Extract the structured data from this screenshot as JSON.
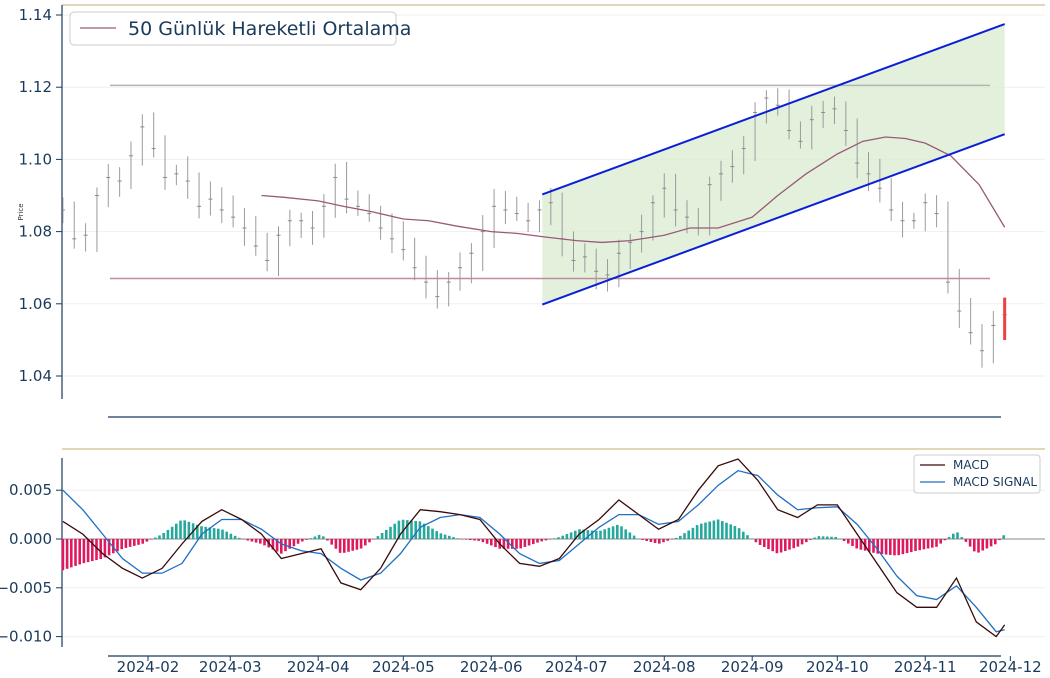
{
  "colors": {
    "ma_line": "#9a5a78",
    "support_line": "#c08aa0",
    "resistance_line": "#b4b4b4",
    "channel_line": "#0a1fd6",
    "channel_fill": "#d9ecd0",
    "candle": "#9a9a9a",
    "last_candle": "#e8433f",
    "macd_line": "#3a0a0a",
    "signal_line": "#1f6fc4",
    "hist_pos": "#24a99c",
    "hist_neg": "#e0185f",
    "axis": "#1a3a5c",
    "top_border": "#d8c9a0"
  },
  "chart_data": [
    {
      "type": "line",
      "ylabel": "Price",
      "ylim": [
        1.034,
        1.141
      ],
      "y_ticks": [
        1.04,
        1.06,
        1.08,
        1.1,
        1.12,
        1.14
      ],
      "y_tick_labels": [
        "1.04",
        "1.06",
        "1.08",
        "1.10",
        "1.12",
        "1.14"
      ],
      "legend": "top-left",
      "grid": true,
      "horizontal_levels": {
        "resistance": 1.1205,
        "support": 1.067
      },
      "channel": {
        "x_start": "2024-06-19",
        "x_end": "2024-11-29",
        "upper": [
          1.0903,
          1.1375
        ],
        "lower": [
          1.0598,
          1.107
        ]
      },
      "series": [
        {
          "name": "50 Günlük Hareketli Ortalama",
          "x": [
            "2024-03-12",
            "2024-03-20",
            "2024-04-01",
            "2024-04-10",
            "2024-04-20",
            "2024-05-01",
            "2024-05-10",
            "2024-05-20",
            "2024-06-01",
            "2024-06-10",
            "2024-06-20",
            "2024-07-01",
            "2024-07-10",
            "2024-07-20",
            "2024-08-01",
            "2024-08-10",
            "2024-08-20",
            "2024-09-01",
            "2024-09-10",
            "2024-09-20",
            "2024-10-01",
            "2024-10-10",
            "2024-10-18",
            "2024-10-25",
            "2024-11-01",
            "2024-11-10",
            "2024-11-20",
            "2024-11-29"
          ],
          "y": [
            1.09,
            1.0895,
            1.0885,
            1.087,
            1.0855,
            1.0835,
            1.083,
            1.0815,
            1.08,
            1.0795,
            1.0785,
            1.0775,
            1.077,
            1.0775,
            1.079,
            1.081,
            1.081,
            1.084,
            1.09,
            1.096,
            1.1015,
            1.105,
            1.1062,
            1.1058,
            1.1045,
            1.101,
            1.093,
            1.0812
          ]
        },
        {
          "name": "price",
          "x": [
            "2024-01-02",
            "2024-01-06",
            "2024-01-10",
            "2024-01-14",
            "2024-01-18",
            "2024-01-22",
            "2024-01-26",
            "2024-01-30",
            "2024-02-03",
            "2024-02-07",
            "2024-02-11",
            "2024-02-15",
            "2024-02-19",
            "2024-02-23",
            "2024-02-27",
            "2024-03-02",
            "2024-03-06",
            "2024-03-10",
            "2024-03-14",
            "2024-03-18",
            "2024-03-22",
            "2024-03-26",
            "2024-03-30",
            "2024-04-03",
            "2024-04-07",
            "2024-04-11",
            "2024-04-15",
            "2024-04-19",
            "2024-04-23",
            "2024-04-27",
            "2024-05-01",
            "2024-05-05",
            "2024-05-09",
            "2024-05-13",
            "2024-05-17",
            "2024-05-21",
            "2024-05-25",
            "2024-05-29",
            "2024-06-02",
            "2024-06-06",
            "2024-06-10",
            "2024-06-14",
            "2024-06-18",
            "2024-06-22",
            "2024-06-26",
            "2024-06-30",
            "2024-07-04",
            "2024-07-08",
            "2024-07-12",
            "2024-07-16",
            "2024-07-20",
            "2024-07-24",
            "2024-07-28",
            "2024-08-01",
            "2024-08-05",
            "2024-08-09",
            "2024-08-13",
            "2024-08-17",
            "2024-08-21",
            "2024-08-25",
            "2024-08-29",
            "2024-09-02",
            "2024-09-06",
            "2024-09-10",
            "2024-09-14",
            "2024-09-18",
            "2024-09-22",
            "2024-09-26",
            "2024-09-30",
            "2024-10-04",
            "2024-10-08",
            "2024-10-12",
            "2024-10-16",
            "2024-10-20",
            "2024-10-24",
            "2024-10-28",
            "2024-11-01",
            "2024-11-05",
            "2024-11-09",
            "2024-11-13",
            "2024-11-17",
            "2024-11-21",
            "2024-11-25",
            "2024-11-29"
          ],
          "y": [
            1.086,
            1.078,
            1.079,
            1.09,
            1.095,
            1.094,
            1.101,
            1.109,
            1.103,
            1.095,
            1.096,
            1.094,
            1.087,
            1.089,
            1.086,
            1.084,
            1.081,
            1.076,
            1.072,
            1.079,
            1.083,
            1.083,
            1.081,
            1.087,
            1.095,
            1.089,
            1.087,
            1.085,
            1.081,
            1.078,
            1.075,
            1.07,
            1.066,
            1.062,
            1.066,
            1.07,
            1.074,
            1.08,
            1.087,
            1.086,
            1.085,
            1.083,
            1.086,
            1.088,
            1.078,
            1.072,
            1.073,
            1.069,
            1.068,
            1.074,
            1.077,
            1.08,
            1.088,
            1.092,
            1.086,
            1.084,
            1.081,
            1.093,
            1.096,
            1.098,
            1.103,
            1.113,
            1.117,
            1.115,
            1.108,
            1.105,
            1.111,
            1.113,
            1.114,
            1.108,
            1.099,
            1.096,
            1.092,
            1.086,
            1.083,
            1.083,
            1.088,
            1.085,
            1.066,
            1.058,
            1.052,
            1.047,
            1.054,
            1.057
          ]
        }
      ]
    },
    {
      "type": "line",
      "ylim": [
        -0.0113,
        0.0086
      ],
      "y_ticks": [
        0.005,
        0.0,
        -0.005,
        -0.01
      ],
      "y_tick_labels": [
        "0.005",
        "0.000",
        "−0.005",
        "−0.010"
      ],
      "categories": [
        "2024-02",
        "2024-03",
        "2024-04",
        "2024-05",
        "2024-06",
        "2024-07",
        "2024-08",
        "2024-09",
        "2024-10",
        "2024-11",
        "2024-12"
      ],
      "legend": "top-right",
      "grid": true,
      "series": [
        {
          "name": "MACD",
          "x": [
            "2024-01-02",
            "2024-01-09",
            "2024-01-16",
            "2024-01-23",
            "2024-01-30",
            "2024-02-06",
            "2024-02-13",
            "2024-02-20",
            "2024-02-27",
            "2024-03-05",
            "2024-03-12",
            "2024-03-19",
            "2024-03-26",
            "2024-04-02",
            "2024-04-09",
            "2024-04-16",
            "2024-04-23",
            "2024-04-30",
            "2024-05-07",
            "2024-05-14",
            "2024-05-21",
            "2024-05-28",
            "2024-06-04",
            "2024-06-11",
            "2024-06-18",
            "2024-06-25",
            "2024-07-02",
            "2024-07-09",
            "2024-07-16",
            "2024-07-23",
            "2024-07-30",
            "2024-08-06",
            "2024-08-13",
            "2024-08-20",
            "2024-08-27",
            "2024-09-03",
            "2024-09-10",
            "2024-09-17",
            "2024-09-24",
            "2024-10-01",
            "2024-10-08",
            "2024-10-15",
            "2024-10-22",
            "2024-10-29",
            "2024-11-05",
            "2024-11-12",
            "2024-11-19",
            "2024-11-26",
            "2024-11-29"
          ],
          "y": [
            0.0018,
            0.0005,
            -0.0015,
            -0.003,
            -0.004,
            -0.003,
            -0.0005,
            0.0018,
            0.003,
            0.002,
            0.0005,
            -0.002,
            -0.0015,
            -0.001,
            -0.0045,
            -0.0052,
            -0.003,
            0.0005,
            0.003,
            0.0028,
            0.0025,
            0.002,
            -0.0005,
            -0.0025,
            -0.0028,
            -0.002,
            0.0005,
            0.002,
            0.004,
            0.0025,
            0.001,
            0.002,
            0.005,
            0.0075,
            0.0082,
            0.006,
            0.003,
            0.0022,
            0.0035,
            0.0035,
            0.0005,
            -0.0025,
            -0.0055,
            -0.007,
            -0.007,
            -0.004,
            -0.0085,
            -0.01,
            -0.0088
          ]
        },
        {
          "name": "MACD SIGNAL",
          "x": [
            "2024-01-02",
            "2024-01-09",
            "2024-01-16",
            "2024-01-23",
            "2024-01-30",
            "2024-02-06",
            "2024-02-13",
            "2024-02-20",
            "2024-02-27",
            "2024-03-05",
            "2024-03-12",
            "2024-03-19",
            "2024-03-26",
            "2024-04-02",
            "2024-04-09",
            "2024-04-16",
            "2024-04-23",
            "2024-04-30",
            "2024-05-07",
            "2024-05-14",
            "2024-05-21",
            "2024-05-28",
            "2024-06-04",
            "2024-06-11",
            "2024-06-18",
            "2024-06-25",
            "2024-07-02",
            "2024-07-09",
            "2024-07-16",
            "2024-07-23",
            "2024-07-30",
            "2024-08-06",
            "2024-08-13",
            "2024-08-20",
            "2024-08-27",
            "2024-09-03",
            "2024-09-10",
            "2024-09-17",
            "2024-09-24",
            "2024-10-01",
            "2024-10-08",
            "2024-10-15",
            "2024-10-22",
            "2024-10-29",
            "2024-11-05",
            "2024-11-12",
            "2024-11-19",
            "2024-11-26",
            "2024-11-29"
          ],
          "y": [
            0.005,
            0.003,
            0.0005,
            -0.002,
            -0.0035,
            -0.0035,
            -0.0025,
            0.0005,
            0.002,
            0.002,
            0.001,
            -0.0005,
            -0.0012,
            -0.0015,
            -0.003,
            -0.0042,
            -0.0035,
            -0.0015,
            0.0012,
            0.0022,
            0.0025,
            0.0022,
            0.0005,
            -0.0015,
            -0.0025,
            -0.0022,
            -0.0005,
            0.0012,
            0.0025,
            0.0025,
            0.0015,
            0.0018,
            0.0035,
            0.0055,
            0.007,
            0.0065,
            0.0045,
            0.003,
            0.0032,
            0.0033,
            0.0015,
            -0.001,
            -0.0038,
            -0.0058,
            -0.0062,
            -0.0048,
            -0.007,
            -0.0095,
            -0.0093
          ]
        }
      ]
    }
  ]
}
